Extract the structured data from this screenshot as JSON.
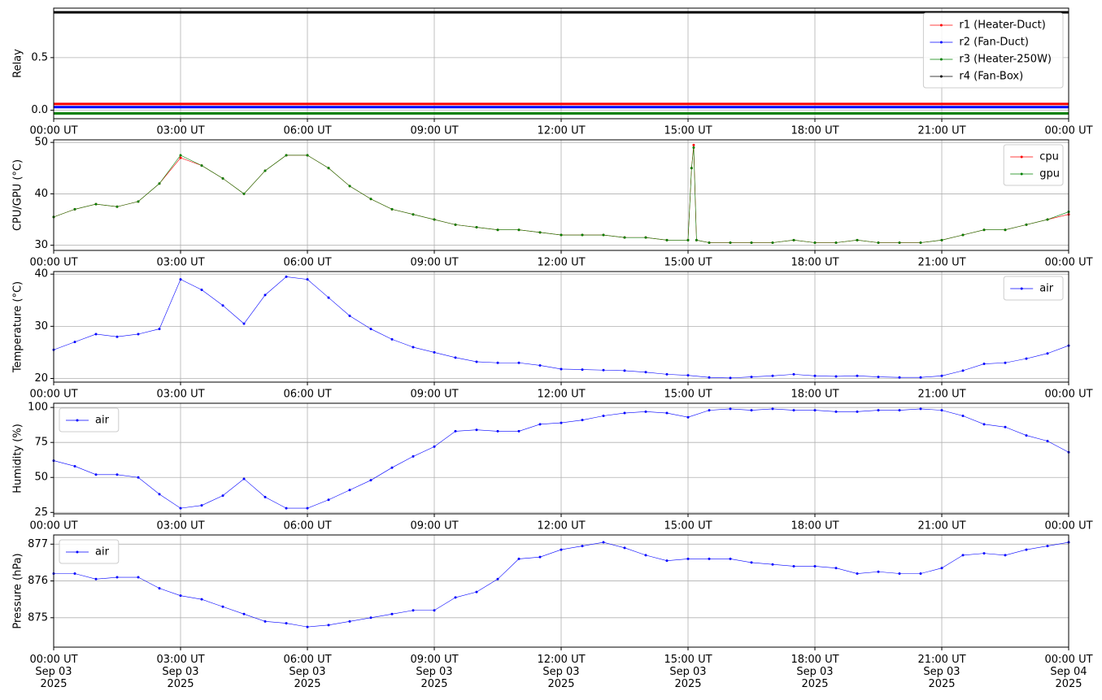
{
  "chart_data": [
    {
      "type": "line",
      "ylabel": "Relay",
      "grid": true,
      "legend": "upper right",
      "x": [
        "2025-09-03T00:00",
        "2025-09-04T00:00"
      ],
      "series": [
        {
          "name": "r1 (Heater-Duct)",
          "color": "#ff0000",
          "values": [
            0.06,
            0.06
          ]
        },
        {
          "name": "r2 (Fan-Duct)",
          "color": "#0000ff",
          "values": [
            0.03,
            0.03
          ]
        },
        {
          "name": "r3 (Heater-250W)",
          "color": "#008000",
          "values": [
            -0.03,
            -0.03
          ]
        },
        {
          "name": "r4 (Fan-Box)",
          "color": "#000000",
          "values": [
            0.93,
            0.93
          ]
        }
      ],
      "xlim": [
        "2025-09-03T00:00",
        "2025-09-04T00:00"
      ],
      "xticks": [
        {
          "value": "2025-09-03T00:00",
          "label": "00:00 UT"
        },
        {
          "value": "2025-09-03T03:00",
          "label": "03:00 UT"
        },
        {
          "value": "2025-09-03T06:00",
          "label": "06:00 UT"
        },
        {
          "value": "2025-09-03T09:00",
          "label": "09:00 UT"
        },
        {
          "value": "2025-09-03T12:00",
          "label": "12:00 UT"
        },
        {
          "value": "2025-09-03T15:00",
          "label": "15:00 UT"
        },
        {
          "value": "2025-09-03T18:00",
          "label": "18:00 UT"
        },
        {
          "value": "2025-09-03T21:00",
          "label": "21:00 UT"
        },
        {
          "value": "2025-09-04T00:00",
          "label": "00:00 UT"
        }
      ],
      "ylim": [
        -0.08,
        0.97
      ],
      "yticks": [
        {
          "value": 0,
          "label": "0.0"
        },
        {
          "value": 0.5,
          "label": "0.5"
        }
      ]
    },
    {
      "type": "line",
      "ylabel": "CPU/GPU (°C)",
      "grid": true,
      "legend": "upper right",
      "x": [
        "2025-09-03T00:00",
        "2025-09-03T00:30",
        "2025-09-03T01:00",
        "2025-09-03T01:30",
        "2025-09-03T02:00",
        "2025-09-03T02:30",
        "2025-09-03T03:00",
        "2025-09-03T03:30",
        "2025-09-03T04:00",
        "2025-09-03T04:30",
        "2025-09-03T05:00",
        "2025-09-03T05:30",
        "2025-09-03T06:00",
        "2025-09-03T06:30",
        "2025-09-03T07:00",
        "2025-09-03T07:30",
        "2025-09-03T08:00",
        "2025-09-03T08:30",
        "2025-09-03T09:00",
        "2025-09-03T09:30",
        "2025-09-03T10:00",
        "2025-09-03T10:30",
        "2025-09-03T11:00",
        "2025-09-03T11:30",
        "2025-09-03T12:00",
        "2025-09-03T12:30",
        "2025-09-03T13:00",
        "2025-09-03T13:30",
        "2025-09-03T14:00",
        "2025-09-03T14:30",
        "2025-09-03T15:00",
        "2025-09-03T15:05",
        "2025-09-03T15:08",
        "2025-09-03T15:12",
        "2025-09-03T15:30",
        "2025-09-03T16:00",
        "2025-09-03T16:30",
        "2025-09-03T17:00",
        "2025-09-03T17:30",
        "2025-09-03T18:00",
        "2025-09-03T18:30",
        "2025-09-03T19:00",
        "2025-09-03T19:30",
        "2025-09-03T20:00",
        "2025-09-03T20:30",
        "2025-09-03T21:00",
        "2025-09-03T21:30",
        "2025-09-03T22:00",
        "2025-09-03T22:30",
        "2025-09-03T23:00",
        "2025-09-03T23:30",
        "2025-09-04T00:00"
      ],
      "series": [
        {
          "name": "cpu",
          "color": "#ff0000",
          "values": [
            35.5,
            37,
            38,
            37.5,
            38.5,
            42,
            47,
            45.5,
            43,
            40,
            44.5,
            47.5,
            47.5,
            45,
            41.5,
            39,
            37,
            36,
            35,
            34,
            33.5,
            33,
            33,
            32.5,
            32,
            32,
            32,
            31.5,
            31.5,
            31,
            31,
            45,
            49.5,
            31,
            30.5,
            30.5,
            30.5,
            30.5,
            31,
            30.5,
            30.5,
            31,
            30.5,
            30.5,
            30.5,
            31,
            32,
            33,
            33,
            34,
            35,
            36
          ]
        },
        {
          "name": "gpu",
          "color": "#008000",
          "values": [
            35.5,
            37,
            38,
            37.5,
            38.5,
            42,
            47.5,
            45.5,
            43,
            40,
            44.5,
            47.5,
            47.5,
            45,
            41.5,
            39,
            37,
            36,
            35,
            34,
            33.5,
            33,
            33,
            32.5,
            32,
            32,
            32,
            31.5,
            31.5,
            31,
            31,
            45,
            49,
            31,
            30.5,
            30.5,
            30.5,
            30.5,
            31,
            30.5,
            30.5,
            31,
            30.5,
            30.5,
            30.5,
            31,
            32,
            33,
            33,
            34,
            35,
            36.5
          ]
        }
      ],
      "xlim": [
        "2025-09-03T00:00",
        "2025-09-04T00:00"
      ],
      "xticks": [
        {
          "value": "2025-09-03T00:00",
          "label": "00:00 UT"
        },
        {
          "value": "2025-09-03T03:00",
          "label": "03:00 UT"
        },
        {
          "value": "2025-09-03T06:00",
          "label": "06:00 UT"
        },
        {
          "value": "2025-09-03T09:00",
          "label": "09:00 UT"
        },
        {
          "value": "2025-09-03T12:00",
          "label": "12:00 UT"
        },
        {
          "value": "2025-09-03T15:00",
          "label": "15:00 UT"
        },
        {
          "value": "2025-09-03T18:00",
          "label": "18:00 UT"
        },
        {
          "value": "2025-09-03T21:00",
          "label": "21:00 UT"
        },
        {
          "value": "2025-09-04T00:00",
          "label": "00:00 UT"
        }
      ],
      "ylim": [
        29,
        50.5
      ],
      "yticks": [
        30,
        40,
        50
      ]
    },
    {
      "type": "line",
      "ylabel": "Temperature (°C)",
      "grid": true,
      "legend": "upper right",
      "x": [
        "2025-09-03T00:00",
        "2025-09-03T00:30",
        "2025-09-03T01:00",
        "2025-09-03T01:30",
        "2025-09-03T02:00",
        "2025-09-03T02:30",
        "2025-09-03T03:00",
        "2025-09-03T03:30",
        "2025-09-03T04:00",
        "2025-09-03T04:30",
        "2025-09-03T05:00",
        "2025-09-03T05:30",
        "2025-09-03T06:00",
        "2025-09-03T06:30",
        "2025-09-03T07:00",
        "2025-09-03T07:30",
        "2025-09-03T08:00",
        "2025-09-03T08:30",
        "2025-09-03T09:00",
        "2025-09-03T09:30",
        "2025-09-03T10:00",
        "2025-09-03T10:30",
        "2025-09-03T11:00",
        "2025-09-03T11:30",
        "2025-09-03T12:00",
        "2025-09-03T12:30",
        "2025-09-03T13:00",
        "2025-09-03T13:30",
        "2025-09-03T14:00",
        "2025-09-03T14:30",
        "2025-09-03T15:00",
        "2025-09-03T15:30",
        "2025-09-03T16:00",
        "2025-09-03T16:30",
        "2025-09-03T17:00",
        "2025-09-03T17:30",
        "2025-09-03T18:00",
        "2025-09-03T18:30",
        "2025-09-03T19:00",
        "2025-09-03T19:30",
        "2025-09-03T20:00",
        "2025-09-03T20:30",
        "2025-09-03T21:00",
        "2025-09-03T21:30",
        "2025-09-03T22:00",
        "2025-09-03T22:30",
        "2025-09-03T23:00",
        "2025-09-03T23:30",
        "2025-09-04T00:00"
      ],
      "series": [
        {
          "name": "air",
          "color": "#0000ff",
          "values": [
            25.5,
            27,
            28.5,
            28,
            28.5,
            29.5,
            39,
            37,
            34,
            30.5,
            36,
            39.5,
            39,
            35.5,
            32,
            29.5,
            27.5,
            26,
            25,
            24,
            23.2,
            23,
            23,
            22.5,
            21.8,
            21.7,
            21.6,
            21.5,
            21.2,
            20.8,
            20.6,
            20.2,
            20.1,
            20.3,
            20.5,
            20.8,
            20.5,
            20.4,
            20.5,
            20.3,
            20.2,
            20.2,
            20.5,
            21.5,
            22.8,
            23,
            23.8,
            24.8,
            26.3
          ]
        }
      ],
      "xlim": [
        "2025-09-03T00:00",
        "2025-09-04T00:00"
      ],
      "xticks": [
        {
          "value": "2025-09-03T00:00",
          "label": "00:00 UT"
        },
        {
          "value": "2025-09-03T03:00",
          "label": "03:00 UT"
        },
        {
          "value": "2025-09-03T06:00",
          "label": "06:00 UT"
        },
        {
          "value": "2025-09-03T09:00",
          "label": "09:00 UT"
        },
        {
          "value": "2025-09-03T12:00",
          "label": "12:00 UT"
        },
        {
          "value": "2025-09-03T15:00",
          "label": "15:00 UT"
        },
        {
          "value": "2025-09-03T18:00",
          "label": "18:00 UT"
        },
        {
          "value": "2025-09-03T21:00",
          "label": "21:00 UT"
        },
        {
          "value": "2025-09-04T00:00",
          "label": "00:00 UT"
        }
      ],
      "ylim": [
        19.3,
        40.5
      ],
      "yticks": [
        20,
        30,
        40
      ]
    },
    {
      "type": "line",
      "ylabel": "Humidity (%)",
      "grid": true,
      "legend": "upper left",
      "x": [
        "2025-09-03T00:00",
        "2025-09-03T00:30",
        "2025-09-03T01:00",
        "2025-09-03T01:30",
        "2025-09-03T02:00",
        "2025-09-03T02:30",
        "2025-09-03T03:00",
        "2025-09-03T03:30",
        "2025-09-03T04:00",
        "2025-09-03T04:30",
        "2025-09-03T05:00",
        "2025-09-03T05:30",
        "2025-09-03T06:00",
        "2025-09-03T06:30",
        "2025-09-03T07:00",
        "2025-09-03T07:30",
        "2025-09-03T08:00",
        "2025-09-03T08:30",
        "2025-09-03T09:00",
        "2025-09-03T09:30",
        "2025-09-03T10:00",
        "2025-09-03T10:30",
        "2025-09-03T11:00",
        "2025-09-03T11:30",
        "2025-09-03T12:00",
        "2025-09-03T12:30",
        "2025-09-03T13:00",
        "2025-09-03T13:30",
        "2025-09-03T14:00",
        "2025-09-03T14:30",
        "2025-09-03T15:00",
        "2025-09-03T15:30",
        "2025-09-03T16:00",
        "2025-09-03T16:30",
        "2025-09-03T17:00",
        "2025-09-03T17:30",
        "2025-09-03T18:00",
        "2025-09-03T18:30",
        "2025-09-03T19:00",
        "2025-09-03T19:30",
        "2025-09-03T20:00",
        "2025-09-03T20:30",
        "2025-09-03T21:00",
        "2025-09-03T21:30",
        "2025-09-03T22:00",
        "2025-09-03T22:30",
        "2025-09-03T23:00",
        "2025-09-03T23:30",
        "2025-09-04T00:00"
      ],
      "series": [
        {
          "name": "air",
          "color": "#0000ff",
          "values": [
            62,
            58,
            52,
            52,
            50,
            38,
            28,
            30,
            37,
            49,
            36,
            28,
            28,
            34,
            41,
            48,
            57,
            65,
            72,
            83,
            84,
            83,
            83,
            88,
            89,
            91,
            94,
            96,
            97,
            96,
            93,
            98,
            99,
            98,
            99,
            98,
            98,
            97,
            97,
            98,
            98,
            99,
            98,
            94,
            88,
            86,
            80,
            76,
            68
          ]
        }
      ],
      "xlim": [
        "2025-09-03T00:00",
        "2025-09-04T00:00"
      ],
      "xticks": [
        {
          "value": "2025-09-03T00:00",
          "label": "00:00 UT"
        },
        {
          "value": "2025-09-03T03:00",
          "label": "03:00 UT"
        },
        {
          "value": "2025-09-03T06:00",
          "label": "06:00 UT"
        },
        {
          "value": "2025-09-03T09:00",
          "label": "09:00 UT"
        },
        {
          "value": "2025-09-03T12:00",
          "label": "12:00 UT"
        },
        {
          "value": "2025-09-03T15:00",
          "label": "15:00 UT"
        },
        {
          "value": "2025-09-03T18:00",
          "label": "18:00 UT"
        },
        {
          "value": "2025-09-03T21:00",
          "label": "21:00 UT"
        },
        {
          "value": "2025-09-04T00:00",
          "label": "00:00 UT"
        }
      ],
      "ylim": [
        24,
        103
      ],
      "yticks": [
        25,
        50,
        75,
        100
      ]
    },
    {
      "type": "line",
      "ylabel": "Pressure (hPa)",
      "grid": true,
      "legend": "upper left",
      "x": [
        "2025-09-03T00:00",
        "2025-09-03T00:30",
        "2025-09-03T01:00",
        "2025-09-03T01:30",
        "2025-09-03T02:00",
        "2025-09-03T02:30",
        "2025-09-03T03:00",
        "2025-09-03T03:30",
        "2025-09-03T04:00",
        "2025-09-03T04:30",
        "2025-09-03T05:00",
        "2025-09-03T05:30",
        "2025-09-03T06:00",
        "2025-09-03T06:30",
        "2025-09-03T07:00",
        "2025-09-03T07:30",
        "2025-09-03T08:00",
        "2025-09-03T08:30",
        "2025-09-03T09:00",
        "2025-09-03T09:30",
        "2025-09-03T10:00",
        "2025-09-03T10:30",
        "2025-09-03T11:00",
        "2025-09-03T11:30",
        "2025-09-03T12:00",
        "2025-09-03T12:30",
        "2025-09-03T13:00",
        "2025-09-03T13:30",
        "2025-09-03T14:00",
        "2025-09-03T14:30",
        "2025-09-03T15:00",
        "2025-09-03T15:30",
        "2025-09-03T16:00",
        "2025-09-03T16:30",
        "2025-09-03T17:00",
        "2025-09-03T17:30",
        "2025-09-03T18:00",
        "2025-09-03T18:30",
        "2025-09-03T19:00",
        "2025-09-03T19:30",
        "2025-09-03T20:00",
        "2025-09-03T20:30",
        "2025-09-03T21:00",
        "2025-09-03T21:30",
        "2025-09-03T22:00",
        "2025-09-03T22:30",
        "2025-09-03T23:00",
        "2025-09-03T23:30",
        "2025-09-04T00:00"
      ],
      "series": [
        {
          "name": "air",
          "color": "#0000ff",
          "values": [
            876.2,
            876.2,
            876.05,
            876.1,
            876.1,
            875.8,
            875.6,
            875.5,
            875.3,
            875.1,
            874.9,
            874.85,
            874.75,
            874.8,
            874.9,
            875.0,
            875.1,
            875.2,
            875.2,
            875.55,
            875.7,
            876.05,
            876.6,
            876.65,
            876.85,
            876.95,
            877.05,
            876.9,
            876.7,
            876.55,
            876.6,
            876.6,
            876.6,
            876.5,
            876.45,
            876.4,
            876.4,
            876.35,
            876.2,
            876.25,
            876.2,
            876.2,
            876.35,
            876.7,
            876.75,
            876.7,
            876.85,
            876.95,
            877.05
          ]
        }
      ],
      "xlim": [
        "2025-09-03T00:00",
        "2025-09-04T00:00"
      ],
      "xticks": [
        {
          "value": "2025-09-03T00:00",
          "label": "00:00 UT\nSep 03\n2025"
        },
        {
          "value": "2025-09-03T03:00",
          "label": "03:00 UT\nSep 03\n2025"
        },
        {
          "value": "2025-09-03T06:00",
          "label": "06:00 UT\nSep 03\n2025"
        },
        {
          "value": "2025-09-03T09:00",
          "label": "09:00 UT\nSep 03\n2025"
        },
        {
          "value": "2025-09-03T12:00",
          "label": "12:00 UT\nSep 03\n2025"
        },
        {
          "value": "2025-09-03T15:00",
          "label": "15:00 UT\nSep 03\n2025"
        },
        {
          "value": "2025-09-03T18:00",
          "label": "18:00 UT\nSep 03\n2025"
        },
        {
          "value": "2025-09-03T21:00",
          "label": "21:00 UT\nSep 03\n2025"
        },
        {
          "value": "2025-09-04T00:00",
          "label": "00:00 UT\nSep 04\n2025"
        }
      ],
      "ylim": [
        874.2,
        877.25
      ],
      "yticks": [
        875,
        876,
        877
      ]
    }
  ]
}
